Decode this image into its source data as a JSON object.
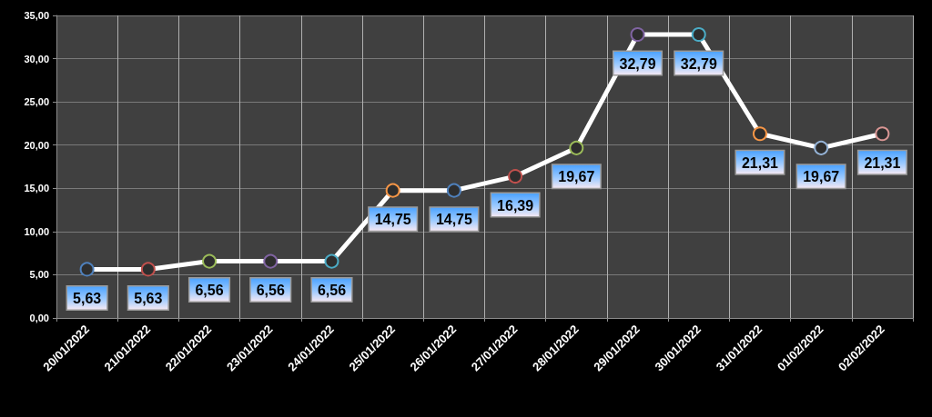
{
  "chart_data": {
    "type": "line",
    "categories": [
      "20/01/2022",
      "21/01/2022",
      "22/01/2022",
      "23/01/2022",
      "24/01/2022",
      "25/01/2022",
      "26/01/2022",
      "27/01/2022",
      "28/01/2022",
      "29/01/2022",
      "30/01/2022",
      "31/01/2022",
      "01/02/2022",
      "02/02/2022"
    ],
    "series": [
      {
        "color": "#ffffff",
        "values": [
          5.63,
          5.63,
          6.56,
          6.56,
          6.56,
          14.75,
          14.75,
          16.39,
          19.67,
          32.79,
          32.79,
          21.31,
          19.67,
          21.31
        ],
        "colors": [
          "#4f81bd",
          "#c0504d",
          "#9bbb59",
          "#8064a2",
          "#4bacc6",
          "#f79646",
          "#4f81bd",
          "#c0504d",
          "#9bbb59",
          "#8064a2",
          "#4bacc6",
          "#f79646",
          "#95b3d7",
          "#d99694"
        ],
        "value_labels": [
          "5,63",
          "5,63",
          "6,56",
          "6,56",
          "6,56",
          "14,75",
          "14,75",
          "16,39",
          "19,67",
          "32,79",
          "32,79",
          "21,31",
          "19,67",
          "21,31"
        ]
      }
    ],
    "ylim": [
      0,
      35
    ],
    "yticks": [
      {
        "value": 0,
        "label": "0,00"
      },
      {
        "value": 5,
        "label": "5,00"
      },
      {
        "value": 10,
        "label": "10,00"
      },
      {
        "value": 15,
        "label": "15,00"
      },
      {
        "value": 20,
        "label": "20,00"
      },
      {
        "value": 25,
        "label": "25,00"
      },
      {
        "value": 30,
        "label": "30,00"
      },
      {
        "value": 35,
        "label": "35,00"
      }
    ],
    "grid": true,
    "marker": "circle",
    "line_style": "solid"
  }
}
